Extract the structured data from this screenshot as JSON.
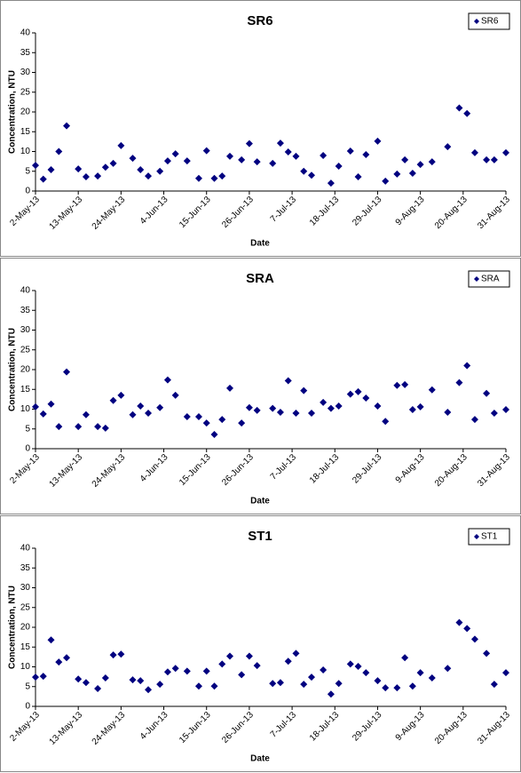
{
  "chart_data": [
    {
      "type": "scatter",
      "title": "SR6",
      "x_label": "Date",
      "y_label": "Concentration, NTU",
      "x": [
        "2013-05-02",
        "2013-05-04",
        "2013-05-06",
        "2013-05-08",
        "2013-05-10",
        "2013-05-13",
        "2013-05-15",
        "2013-05-18",
        "2013-05-20",
        "2013-05-22",
        "2013-05-24",
        "2013-05-27",
        "2013-05-29",
        "2013-05-31",
        "2013-06-03",
        "2013-06-05",
        "2013-06-07",
        "2013-06-10",
        "2013-06-13",
        "2013-06-15",
        "2013-06-17",
        "2013-06-19",
        "2013-06-21",
        "2013-06-24",
        "2013-06-26",
        "2013-06-28",
        "2013-07-02",
        "2013-07-04",
        "2013-07-06",
        "2013-07-08",
        "2013-07-10",
        "2013-07-12",
        "2013-07-15",
        "2013-07-17",
        "2013-07-19",
        "2013-07-22",
        "2013-07-24",
        "2013-07-26",
        "2013-07-29",
        "2013-07-31",
        "2013-08-03",
        "2013-08-05",
        "2013-08-07",
        "2013-08-09",
        "2013-08-12",
        "2013-08-16",
        "2013-08-19",
        "2013-08-21",
        "2013-08-23",
        "2013-08-26",
        "2013-08-28",
        "2013-08-31"
      ],
      "series": [
        {
          "name": "SR6",
          "color": "#000080",
          "values": [
            6.5,
            3,
            5.4,
            10,
            16.5,
            5.6,
            3.6,
            3.8,
            6,
            7,
            11.5,
            8.3,
            5.4,
            3.8,
            5,
            7.6,
            9.4,
            7.6,
            3.2,
            10.2,
            3.2,
            3.8,
            8.8,
            7.9,
            12,
            7.4,
            7,
            12.1,
            9.9,
            8.8,
            5,
            4,
            9,
            2,
            6.3,
            10.1,
            3.6,
            9.2,
            12.6,
            2.5,
            4.3,
            7.9,
            4.5,
            6.7,
            7.4,
            11.2,
            21,
            19.6,
            9.7,
            7.9,
            7.9,
            9.7
          ]
        }
      ],
      "xlim": [
        "2013-05-02",
        "2013-08-31"
      ],
      "xticks": [
        {
          "value": "2013-05-02",
          "label": "2-May-13"
        },
        {
          "value": "2013-05-13",
          "label": "13-May-13"
        },
        {
          "value": "2013-05-24",
          "label": "24-May-13"
        },
        {
          "value": "2013-06-04",
          "label": "4-Jun-13"
        },
        {
          "value": "2013-06-15",
          "label": "15-Jun-13"
        },
        {
          "value": "2013-06-26",
          "label": "26-Jun-13"
        },
        {
          "value": "2013-07-07",
          "label": "7-Jul-13"
        },
        {
          "value": "2013-07-18",
          "label": "18-Jul-13"
        },
        {
          "value": "2013-07-29",
          "label": "29-Jul-13"
        },
        {
          "value": "2013-08-09",
          "label": "9-Aug-13"
        },
        {
          "value": "2013-08-20",
          "label": "20-Aug-13"
        },
        {
          "value": "2013-08-31",
          "label": "31-Aug-13"
        }
      ],
      "ylim": [
        0,
        40
      ],
      "yticks": [
        0,
        5,
        10,
        15,
        20,
        25,
        30,
        35,
        40
      ],
      "legend": "upper right"
    },
    {
      "type": "scatter",
      "title": "SRA",
      "x_label": "Date",
      "y_label": "Concentration, NTU",
      "x": [
        "2013-05-02",
        "2013-05-04",
        "2013-05-06",
        "2013-05-08",
        "2013-05-10",
        "2013-05-13",
        "2013-05-15",
        "2013-05-18",
        "2013-05-20",
        "2013-05-22",
        "2013-05-24",
        "2013-05-27",
        "2013-05-29",
        "2013-05-31",
        "2013-06-03",
        "2013-06-05",
        "2013-06-07",
        "2013-06-10",
        "2013-06-13",
        "2013-06-15",
        "2013-06-17",
        "2013-06-19",
        "2013-06-21",
        "2013-06-24",
        "2013-06-26",
        "2013-06-28",
        "2013-07-02",
        "2013-07-04",
        "2013-07-06",
        "2013-07-08",
        "2013-07-10",
        "2013-07-12",
        "2013-07-15",
        "2013-07-17",
        "2013-07-19",
        "2013-07-22",
        "2013-07-24",
        "2013-07-26",
        "2013-07-29",
        "2013-07-31",
        "2013-08-03",
        "2013-08-05",
        "2013-08-07",
        "2013-08-09",
        "2013-08-12",
        "2013-08-16",
        "2013-08-19",
        "2013-08-21",
        "2013-08-23",
        "2013-08-26",
        "2013-08-28",
        "2013-08-31"
      ],
      "series": [
        {
          "name": "SRA",
          "color": "#000080",
          "values": [
            10.6,
            8.8,
            11.3,
            5.6,
            19.4,
            5.6,
            8.6,
            5.6,
            5.2,
            12.2,
            13.5,
            8.6,
            10.8,
            9,
            10.4,
            17.4,
            13.5,
            8.1,
            8.1,
            6.5,
            3.6,
            7.4,
            15.3,
            6.5,
            10.4,
            9.7,
            10.2,
            9.2,
            17.2,
            9,
            14.7,
            9,
            11.7,
            10.2,
            10.8,
            13.8,
            14.4,
            12.8,
            10.8,
            6.9,
            16,
            16.2,
            9.9,
            10.6,
            14.9,
            9.2,
            16.7,
            21,
            7.4,
            14,
            9,
            9.9
          ]
        }
      ],
      "xlim": [
        "2013-05-02",
        "2013-08-31"
      ],
      "xticks": [
        {
          "value": "2013-05-02",
          "label": "2-May-13"
        },
        {
          "value": "2013-05-13",
          "label": "13-May-13"
        },
        {
          "value": "2013-05-24",
          "label": "24-May-13"
        },
        {
          "value": "2013-06-04",
          "label": "4-Jun-13"
        },
        {
          "value": "2013-06-15",
          "label": "15-Jun-13"
        },
        {
          "value": "2013-06-26",
          "label": "26-Jun-13"
        },
        {
          "value": "2013-07-07",
          "label": "7-Jul-13"
        },
        {
          "value": "2013-07-18",
          "label": "18-Jul-13"
        },
        {
          "value": "2013-07-29",
          "label": "29-Jul-13"
        },
        {
          "value": "2013-08-09",
          "label": "9-Aug-13"
        },
        {
          "value": "2013-08-20",
          "label": "20-Aug-13"
        },
        {
          "value": "2013-08-31",
          "label": "31-Aug-13"
        }
      ],
      "ylim": [
        0,
        40
      ],
      "yticks": [
        0,
        5,
        10,
        15,
        20,
        25,
        30,
        35,
        40
      ],
      "legend": "upper right"
    },
    {
      "type": "scatter",
      "title": "ST1",
      "x_label": "Date",
      "y_label": "Concentration, NTU",
      "x": [
        "2013-05-02",
        "2013-05-04",
        "2013-05-06",
        "2013-05-08",
        "2013-05-10",
        "2013-05-13",
        "2013-05-15",
        "2013-05-18",
        "2013-05-20",
        "2013-05-22",
        "2013-05-24",
        "2013-05-27",
        "2013-05-29",
        "2013-05-31",
        "2013-06-03",
        "2013-06-05",
        "2013-06-07",
        "2013-06-10",
        "2013-06-13",
        "2013-06-15",
        "2013-06-17",
        "2013-06-19",
        "2013-06-21",
        "2013-06-24",
        "2013-06-26",
        "2013-06-28",
        "2013-07-02",
        "2013-07-04",
        "2013-07-06",
        "2013-07-08",
        "2013-07-10",
        "2013-07-12",
        "2013-07-15",
        "2013-07-17",
        "2013-07-19",
        "2013-07-22",
        "2013-07-24",
        "2013-07-26",
        "2013-07-29",
        "2013-07-31",
        "2013-08-03",
        "2013-08-05",
        "2013-08-07",
        "2013-08-09",
        "2013-08-12",
        "2013-08-16",
        "2013-08-19",
        "2013-08-21",
        "2013-08-23",
        "2013-08-26",
        "2013-08-28",
        "2013-08-31"
      ],
      "series": [
        {
          "name": "ST1",
          "color": "#000080",
          "values": [
            7.4,
            7.6,
            16.8,
            11.2,
            12.3,
            6.9,
            6,
            4.5,
            7.2,
            13,
            13.2,
            6.7,
            6.5,
            4.2,
            5.6,
            8.7,
            9.6,
            8.9,
            5.1,
            8.9,
            5.1,
            10.7,
            12.7,
            8,
            12.7,
            10.3,
            5.8,
            6,
            11.4,
            13.4,
            5.6,
            7.4,
            9.2,
            3.1,
            5.8,
            10.7,
            10.1,
            8.5,
            6.5,
            4.7,
            4.7,
            12.3,
            5.1,
            8.5,
            7.2,
            9.6,
            21.2,
            19.7,
            17,
            13.4,
            5.6,
            8.5
          ]
        }
      ],
      "xlim": [
        "2013-05-02",
        "2013-08-31"
      ],
      "xticks": [
        {
          "value": "2013-05-02",
          "label": "2-May-13"
        },
        {
          "value": "2013-05-13",
          "label": "13-May-13"
        },
        {
          "value": "2013-05-24",
          "label": "24-May-13"
        },
        {
          "value": "2013-06-04",
          "label": "4-Jun-13"
        },
        {
          "value": "2013-06-15",
          "label": "15-Jun-13"
        },
        {
          "value": "2013-06-26",
          "label": "26-Jun-13"
        },
        {
          "value": "2013-07-07",
          "label": "7-Jul-13"
        },
        {
          "value": "2013-07-18",
          "label": "18-Jul-13"
        },
        {
          "value": "2013-07-29",
          "label": "29-Jul-13"
        },
        {
          "value": "2013-08-09",
          "label": "9-Aug-13"
        },
        {
          "value": "2013-08-20",
          "label": "20-Aug-13"
        },
        {
          "value": "2013-08-31",
          "label": "31-Aug-13"
        }
      ],
      "ylim": [
        0,
        40
      ],
      "yticks": [
        0,
        5,
        10,
        15,
        20,
        25,
        30,
        35,
        40
      ],
      "legend": "upper right"
    }
  ]
}
